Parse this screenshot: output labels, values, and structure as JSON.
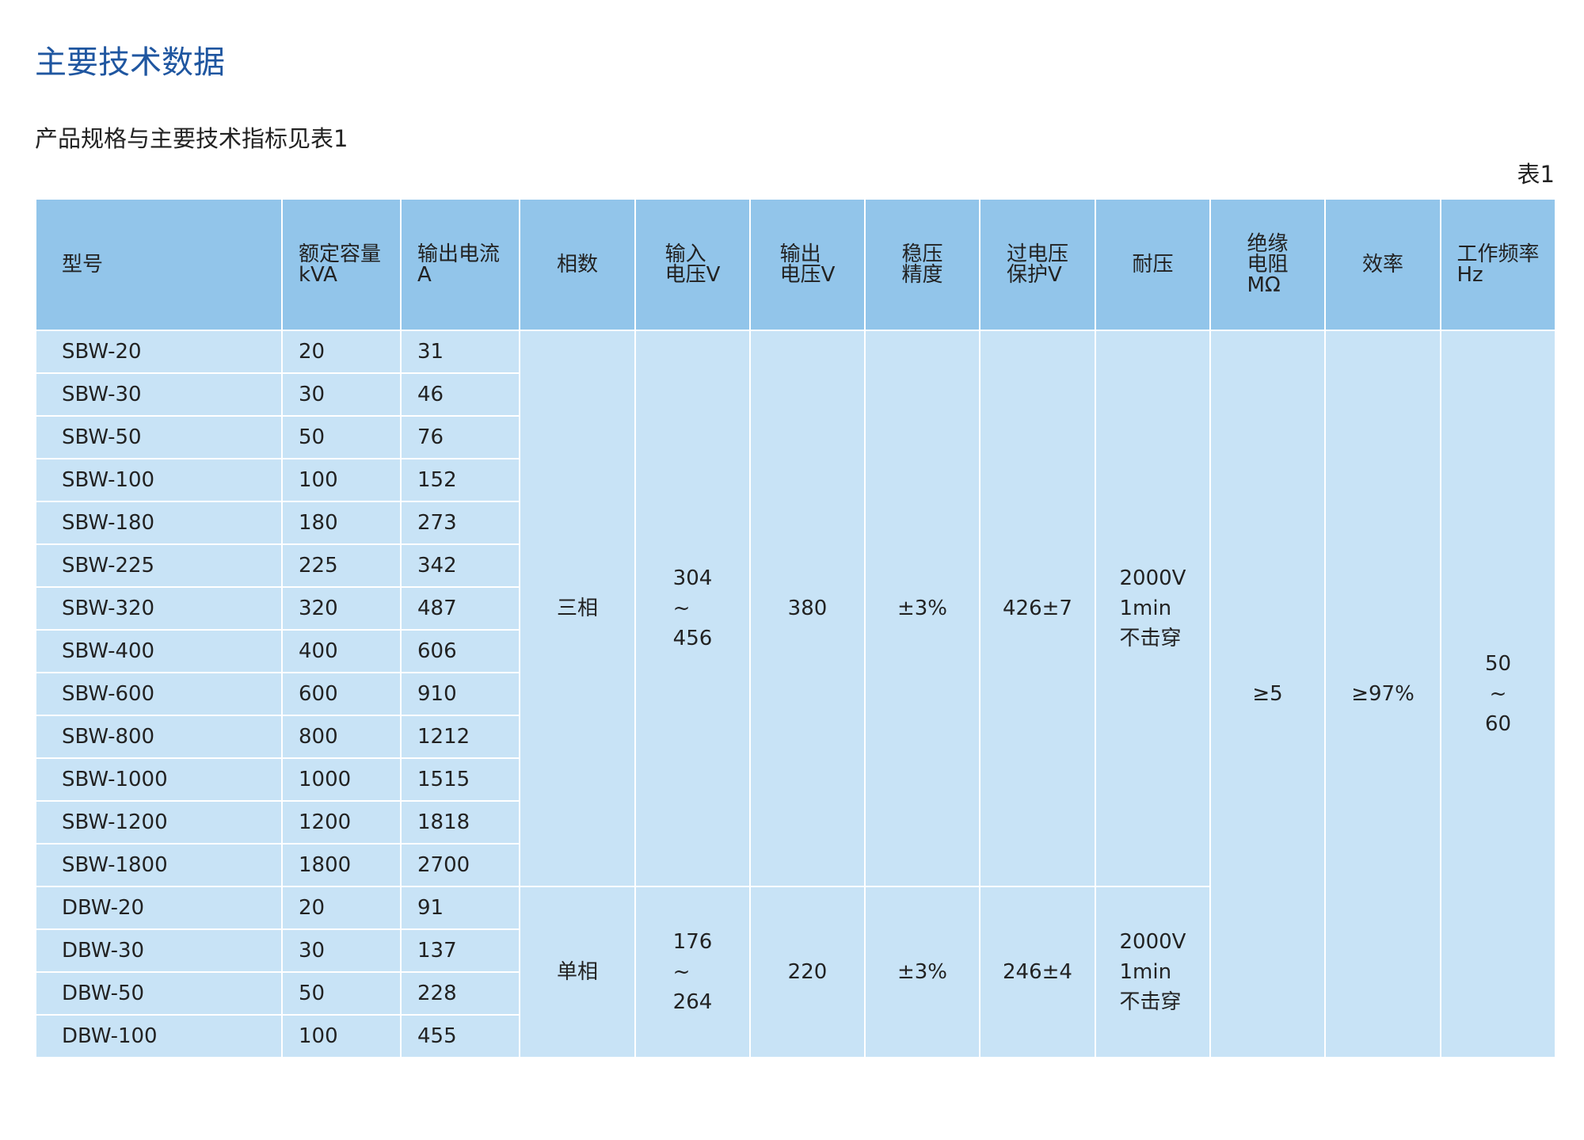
{
  "title": "主要技术数据",
  "subtitle": "产品规格与主要技术指标见表1",
  "table_label": "表1",
  "colors": {
    "title": "#1f56a0",
    "header_bg": "#92c5ea",
    "body_bg": "#c8e3f6",
    "grid": "#ffffff"
  },
  "headers": [
    "型号",
    "额定容量\nkVA",
    "输出电流\nA",
    "相数",
    "输入\n电压V",
    "输出\n电压V",
    "稳压\n精度",
    "过电压\n保护V",
    "耐压",
    "绝缘\n电阻\nMΩ",
    "效率",
    "工作频率\nHz"
  ],
  "three_phase": {
    "rows": [
      {
        "model": "SBW-20",
        "capacity": "20",
        "current": "31"
      },
      {
        "model": "SBW-30",
        "capacity": "30",
        "current": "46"
      },
      {
        "model": "SBW-50",
        "capacity": "50",
        "current": "76"
      },
      {
        "model": "SBW-100",
        "capacity": "100",
        "current": "152"
      },
      {
        "model": "SBW-180",
        "capacity": "180",
        "current": "273"
      },
      {
        "model": "SBW-225",
        "capacity": "225",
        "current": "342"
      },
      {
        "model": "SBW-320",
        "capacity": "320",
        "current": "487"
      },
      {
        "model": "SBW-400",
        "capacity": "400",
        "current": "606"
      },
      {
        "model": "SBW-600",
        "capacity": "600",
        "current": "910"
      },
      {
        "model": "SBW-800",
        "capacity": "800",
        "current": "1212"
      },
      {
        "model": "SBW-1000",
        "capacity": "1000",
        "current": "1515"
      },
      {
        "model": "SBW-1200",
        "capacity": "1200",
        "current": "1818"
      },
      {
        "model": "SBW-1800",
        "capacity": "1800",
        "current": "2700"
      }
    ],
    "phase": "三相",
    "input_voltage": "304\n~\n456",
    "output_voltage": "380",
    "accuracy": "±3%",
    "overvoltage": "426±7",
    "withstand": "2000V\n1min\n不击穿"
  },
  "single_phase": {
    "rows": [
      {
        "model": "DBW-20",
        "capacity": "20",
        "current": "91"
      },
      {
        "model": "DBW-30",
        "capacity": "30",
        "current": "137"
      },
      {
        "model": "DBW-50",
        "capacity": "50",
        "current": "228"
      },
      {
        "model": "DBW-100",
        "capacity": "100",
        "current": "455"
      }
    ],
    "phase": "单相",
    "input_voltage": "176\n~\n264",
    "output_voltage": "220",
    "accuracy": "±3%",
    "overvoltage": "246±4",
    "withstand": "2000V\n1min\n不击穿"
  },
  "shared": {
    "insulation": "≥5",
    "efficiency": "≥97%",
    "frequency": "50\n~\n60"
  }
}
